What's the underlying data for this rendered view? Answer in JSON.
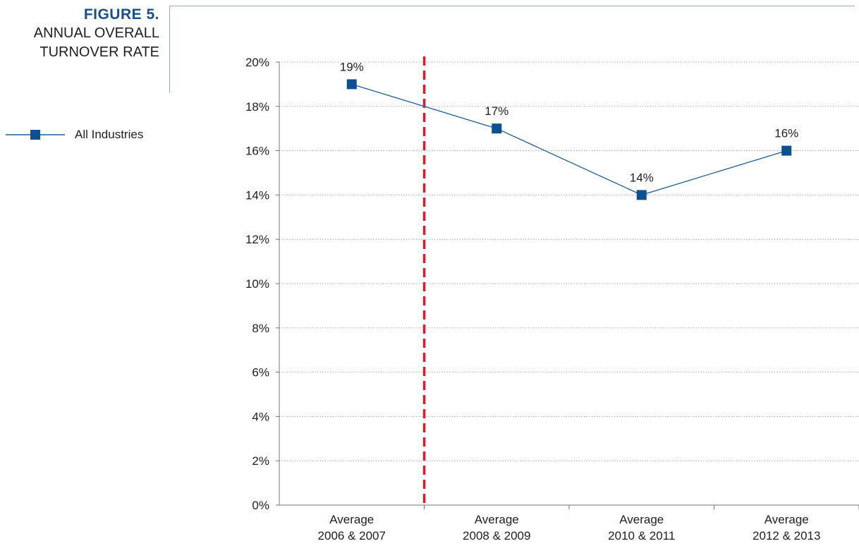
{
  "figure": {
    "label": "FIGURE 5.",
    "title_line1": "ANNUAL OVERALL",
    "title_line2": "TURNOVER RATE"
  },
  "colors": {
    "series": "#1e5f96",
    "marker": "#0d4f91",
    "divider": "#c9252c",
    "grid": "#9a9a9a",
    "axis": "#777777",
    "frame": "#9aa9bb",
    "figure_label": "#1b4f86"
  },
  "chart_data": {
    "type": "line",
    "categories": [
      [
        "Average",
        "2006 & 2007"
      ],
      [
        "Average",
        "2008 & 2009"
      ],
      [
        "Average",
        "2010 & 2011"
      ],
      [
        "Average",
        "2012 & 2013"
      ]
    ],
    "series": [
      {
        "name": "All Industries",
        "values": [
          19,
          17,
          14,
          16
        ],
        "labels": [
          "19%",
          "17%",
          "14%",
          "16%"
        ]
      }
    ],
    "ylim": [
      0,
      20
    ],
    "yticks": [
      0,
      2,
      4,
      6,
      8,
      10,
      12,
      14,
      16,
      18,
      20
    ],
    "ytick_labels": [
      "0%",
      "2%",
      "4%",
      "6%",
      "8%",
      "10%",
      "12%",
      "14%",
      "16%",
      "18%",
      "20%"
    ],
    "grid": "horizontal-dotted",
    "divider_between_categories": [
      0,
      1
    ],
    "legend_position": "left",
    "marker": "square"
  }
}
